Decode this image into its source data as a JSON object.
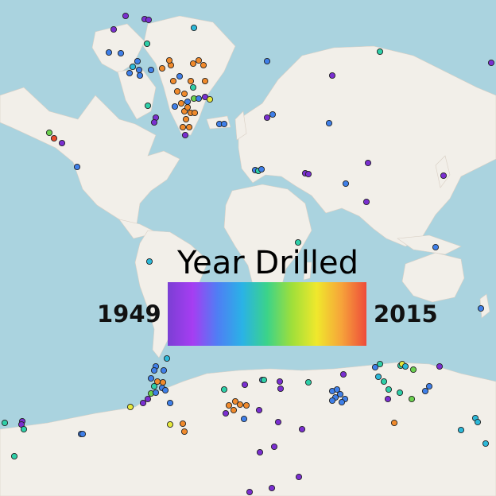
{
  "legend": {
    "title": "Year Drilled",
    "min_label": "1949",
    "max_label": "2015",
    "gradient_colors": [
      "#7b3fd4",
      "#a63df2",
      "#4f7ef4",
      "#2ab2e6",
      "#3bd38a",
      "#9fdf3a",
      "#f0e82c",
      "#f6a33a",
      "#ee4b3a"
    ]
  },
  "colors": {
    "ocean": "#aad3df",
    "land": "#f2efe9",
    "border": "#c9a8c9"
  },
  "marker_colors": {
    "purple": "#7a2fd0",
    "violet": "#9b3ee8",
    "blue": "#3f7fe8",
    "cyan": "#2cb8d8",
    "teal": "#2ecfa8",
    "green": "#6bd14f",
    "yellow": "#e6e83c",
    "orange": "#f08a2c",
    "red": "#e84a2c"
  }
}
